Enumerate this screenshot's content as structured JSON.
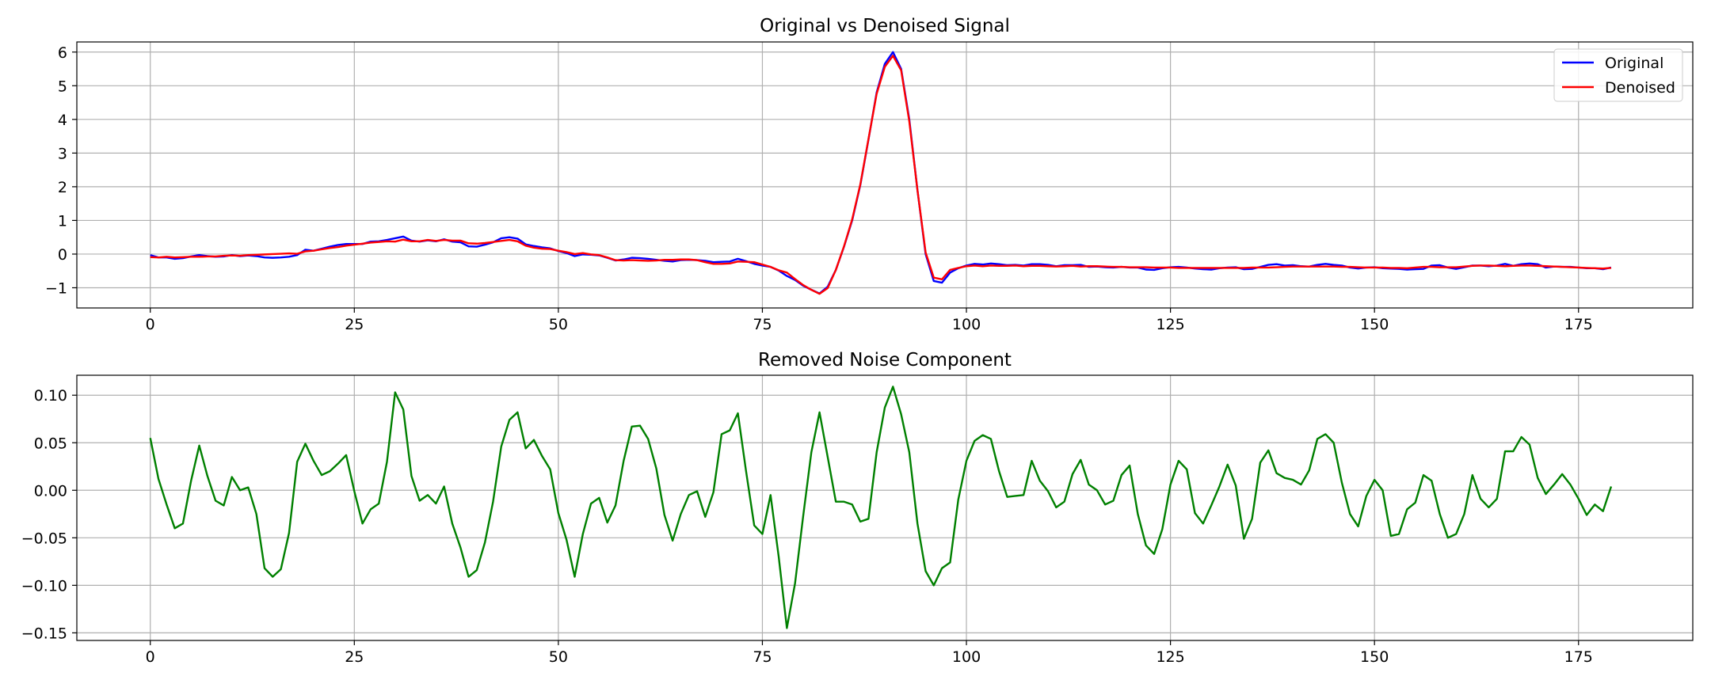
{
  "chart_data": [
    {
      "type": "line",
      "title": "Original vs Denoised Signal",
      "xlabel": "",
      "ylabel": "",
      "xlim": [
        -9,
        189
      ],
      "ylim": [
        -1.6,
        6.3
      ],
      "xticks": [
        0,
        25,
        50,
        75,
        100,
        125,
        150,
        175
      ],
      "yticks": [
        -1,
        0,
        1,
        2,
        3,
        4,
        5,
        6
      ],
      "grid": true,
      "legend_position": "top-right",
      "x_start": 0,
      "x_step": 1,
      "series": [
        {
          "name": "Original",
          "color": "#0000ff",
          "values": [
            -0.03,
            -0.1,
            -0.1,
            -0.14,
            -0.12,
            -0.07,
            -0.03,
            -0.06,
            -0.08,
            -0.07,
            -0.03,
            -0.06,
            -0.04,
            -0.06,
            -0.1,
            -0.11,
            -0.1,
            -0.08,
            -0.03,
            0.13,
            0.1,
            0.16,
            0.22,
            0.27,
            0.3,
            0.3,
            0.3,
            0.37,
            0.38,
            0.42,
            0.47,
            0.52,
            0.4,
            0.37,
            0.41,
            0.38,
            0.44,
            0.37,
            0.35,
            0.23,
            0.22,
            0.28,
            0.35,
            0.47,
            0.5,
            0.46,
            0.29,
            0.24,
            0.2,
            0.17,
            0.09,
            0.03,
            -0.06,
            -0.01,
            -0.02,
            -0.04,
            -0.11,
            -0.19,
            -0.16,
            -0.11,
            -0.12,
            -0.14,
            -0.17,
            -0.2,
            -0.22,
            -0.18,
            -0.17,
            -0.18,
            -0.2,
            -0.24,
            -0.23,
            -0.22,
            -0.14,
            -0.21,
            -0.29,
            -0.34,
            -0.38,
            -0.49,
            -0.65,
            -0.77,
            -0.94,
            -1.06,
            -1.17,
            -0.97,
            -0.47,
            0.22,
            1.0,
            2.05,
            3.4,
            4.8,
            5.65,
            6.0,
            5.5,
            4.0,
            1.9,
            0.0,
            -0.8,
            -0.85,
            -0.55,
            -0.42,
            -0.34,
            -0.29,
            -0.31,
            -0.28,
            -0.3,
            -0.33,
            -0.32,
            -0.34,
            -0.3,
            -0.3,
            -0.32,
            -0.36,
            -0.33,
            -0.33,
            -0.32,
            -0.38,
            -0.37,
            -0.39,
            -0.4,
            -0.38,
            -0.4,
            -0.4,
            -0.46,
            -0.47,
            -0.42,
            -0.39,
            -0.38,
            -0.4,
            -0.43,
            -0.45,
            -0.46,
            -0.42,
            -0.4,
            -0.39,
            -0.45,
            -0.44,
            -0.38,
            -0.32,
            -0.3,
            -0.34,
            -0.33,
            -0.36,
            -0.37,
            -0.32,
            -0.29,
            -0.32,
            -0.34,
            -0.4,
            -0.43,
            -0.4,
            -0.39,
            -0.42,
            -0.43,
            -0.44,
            -0.46,
            -0.45,
            -0.44,
            -0.34,
            -0.33,
            -0.4,
            -0.44,
            -0.39,
            -0.34,
            -0.34,
            -0.36,
            -0.34,
            -0.29,
            -0.35,
            -0.3,
            -0.28,
            -0.3,
            -0.4,
            -0.37,
            -0.38,
            -0.38,
            -0.4,
            -0.42,
            -0.42,
            -0.45,
            -0.4
          ]
        },
        {
          "name": "Denoised",
          "color": "#ff0000",
          "values": [
            -0.09,
            -0.1,
            -0.08,
            -0.1,
            -0.09,
            -0.08,
            -0.08,
            -0.07,
            -0.07,
            -0.05,
            -0.04,
            -0.05,
            -0.03,
            -0.02,
            -0.01,
            0.0,
            0.01,
            0.02,
            0.01,
            0.08,
            0.1,
            0.14,
            0.18,
            0.21,
            0.25,
            0.28,
            0.31,
            0.34,
            0.36,
            0.38,
            0.37,
            0.43,
            0.38,
            0.38,
            0.42,
            0.39,
            0.42,
            0.4,
            0.4,
            0.32,
            0.31,
            0.33,
            0.36,
            0.39,
            0.42,
            0.38,
            0.25,
            0.19,
            0.16,
            0.15,
            0.1,
            0.06,
            0.0,
            0.03,
            -0.01,
            -0.03,
            -0.1,
            -0.18,
            -0.19,
            -0.18,
            -0.19,
            -0.2,
            -0.19,
            -0.17,
            -0.17,
            -0.16,
            -0.16,
            -0.18,
            -0.24,
            -0.29,
            -0.29,
            -0.28,
            -0.22,
            -0.23,
            -0.24,
            -0.31,
            -0.38,
            -0.48,
            -0.55,
            -0.74,
            -0.92,
            -1.06,
            -1.18,
            -1.01,
            -0.47,
            0.23,
            1.03,
            2.07,
            3.42,
            4.76,
            5.56,
            5.89,
            5.46,
            3.94,
            1.9,
            0.05,
            -0.7,
            -0.75,
            -0.47,
            -0.41,
            -0.36,
            -0.34,
            -0.36,
            -0.34,
            -0.35,
            -0.35,
            -0.34,
            -0.36,
            -0.35,
            -0.35,
            -0.36,
            -0.37,
            -0.36,
            -0.35,
            -0.37,
            -0.36,
            -0.36,
            -0.37,
            -0.38,
            -0.38,
            -0.39,
            -0.39,
            -0.39,
            -0.4,
            -0.4,
            -0.4,
            -0.41,
            -0.41,
            -0.41,
            -0.41,
            -0.41,
            -0.41,
            -0.41,
            -0.41,
            -0.41,
            -0.4,
            -0.4,
            -0.4,
            -0.39,
            -0.38,
            -0.37,
            -0.37,
            -0.37,
            -0.37,
            -0.37,
            -0.37,
            -0.38,
            -0.38,
            -0.39,
            -0.4,
            -0.4,
            -0.4,
            -0.41,
            -0.41,
            -0.42,
            -0.4,
            -0.38,
            -0.38,
            -0.39,
            -0.39,
            -0.39,
            -0.37,
            -0.35,
            -0.34,
            -0.34,
            -0.35,
            -0.36,
            -0.35,
            -0.34,
            -0.34,
            -0.35,
            -0.36,
            -0.37,
            -0.38,
            -0.39,
            -0.4,
            -0.41,
            -0.42,
            -0.43,
            -0.41
          ]
        }
      ]
    },
    {
      "type": "line",
      "title": "Removed Noise Component",
      "xlabel": "",
      "ylabel": "",
      "xlim": [
        -9,
        189
      ],
      "ylim": [
        -0.158,
        0.121
      ],
      "xticks": [
        0,
        25,
        50,
        75,
        100,
        125,
        150,
        175
      ],
      "yticks": [
        -0.15,
        -0.1,
        -0.05,
        0.0,
        0.05,
        0.1
      ],
      "ytick_labels": [
        "−0.15",
        "−0.10",
        "−0.05",
        "0.00",
        "0.05",
        "0.10"
      ],
      "grid": true,
      "x_start": 0,
      "x_step": 1,
      "series": [
        {
          "color": "#008000",
          "values": [
            0.055,
            0.012,
            -0.015,
            -0.04,
            -0.035,
            0.01,
            0.047,
            0.015,
            -0.011,
            -0.016,
            0.014,
            0.0,
            0.003,
            -0.025,
            -0.082,
            -0.091,
            -0.083,
            -0.045,
            0.03,
            0.049,
            0.031,
            0.016,
            0.02,
            0.028,
            0.037,
            -0.001,
            -0.035,
            -0.02,
            -0.014,
            0.03,
            0.103,
            0.085,
            0.015,
            -0.011,
            -0.005,
            -0.014,
            0.004,
            -0.035,
            -0.06,
            -0.091,
            -0.084,
            -0.055,
            -0.012,
            0.046,
            0.074,
            0.082,
            0.044,
            0.053,
            0.036,
            0.022,
            -0.024,
            -0.052,
            -0.091,
            -0.046,
            -0.014,
            -0.008,
            -0.034,
            -0.016,
            0.031,
            0.067,
            0.068,
            0.054,
            0.023,
            -0.026,
            -0.053,
            -0.025,
            -0.005,
            -0.001,
            -0.028,
            -0.002,
            0.059,
            0.063,
            0.081,
            0.02,
            -0.037,
            -0.046,
            -0.005,
            -0.07,
            -0.145,
            -0.098,
            -0.027,
            0.04,
            0.082,
            0.035,
            -0.012,
            -0.012,
            -0.015,
            -0.033,
            -0.03,
            0.04,
            0.087,
            0.109,
            0.08,
            0.04,
            -0.035,
            -0.085,
            -0.1,
            -0.082,
            -0.076,
            -0.01,
            0.031,
            0.052,
            0.058,
            0.054,
            0.02,
            -0.007,
            -0.006,
            -0.005,
            0.031,
            0.01,
            -0.001,
            -0.018,
            -0.012,
            0.017,
            0.032,
            0.006,
            0.0,
            -0.015,
            -0.011,
            0.016,
            0.026,
            -0.025,
            -0.058,
            -0.067,
            -0.041,
            0.006,
            0.031,
            0.022,
            -0.024,
            -0.035,
            -0.016,
            0.004,
            0.027,
            0.005,
            -0.051,
            -0.03,
            0.029,
            0.042,
            0.018,
            0.013,
            0.011,
            0.006,
            0.021,
            0.054,
            0.059,
            0.05,
            0.008,
            -0.025,
            -0.038,
            -0.006,
            0.011,
            0.0,
            -0.048,
            -0.046,
            -0.02,
            -0.013,
            0.016,
            0.01,
            -0.025,
            -0.05,
            -0.046,
            -0.025,
            0.016,
            -0.009,
            -0.018,
            -0.009,
            0.041,
            0.041,
            0.056,
            0.048,
            0.013,
            -0.004,
            0.006,
            0.017,
            0.006,
            -0.009,
            -0.026,
            -0.015,
            -0.022,
            0.004
          ]
        }
      ]
    }
  ],
  "legend": [
    {
      "label": "Original",
      "color": "#0000ff"
    },
    {
      "label": "Denoised",
      "color": "#ff0000"
    }
  ]
}
